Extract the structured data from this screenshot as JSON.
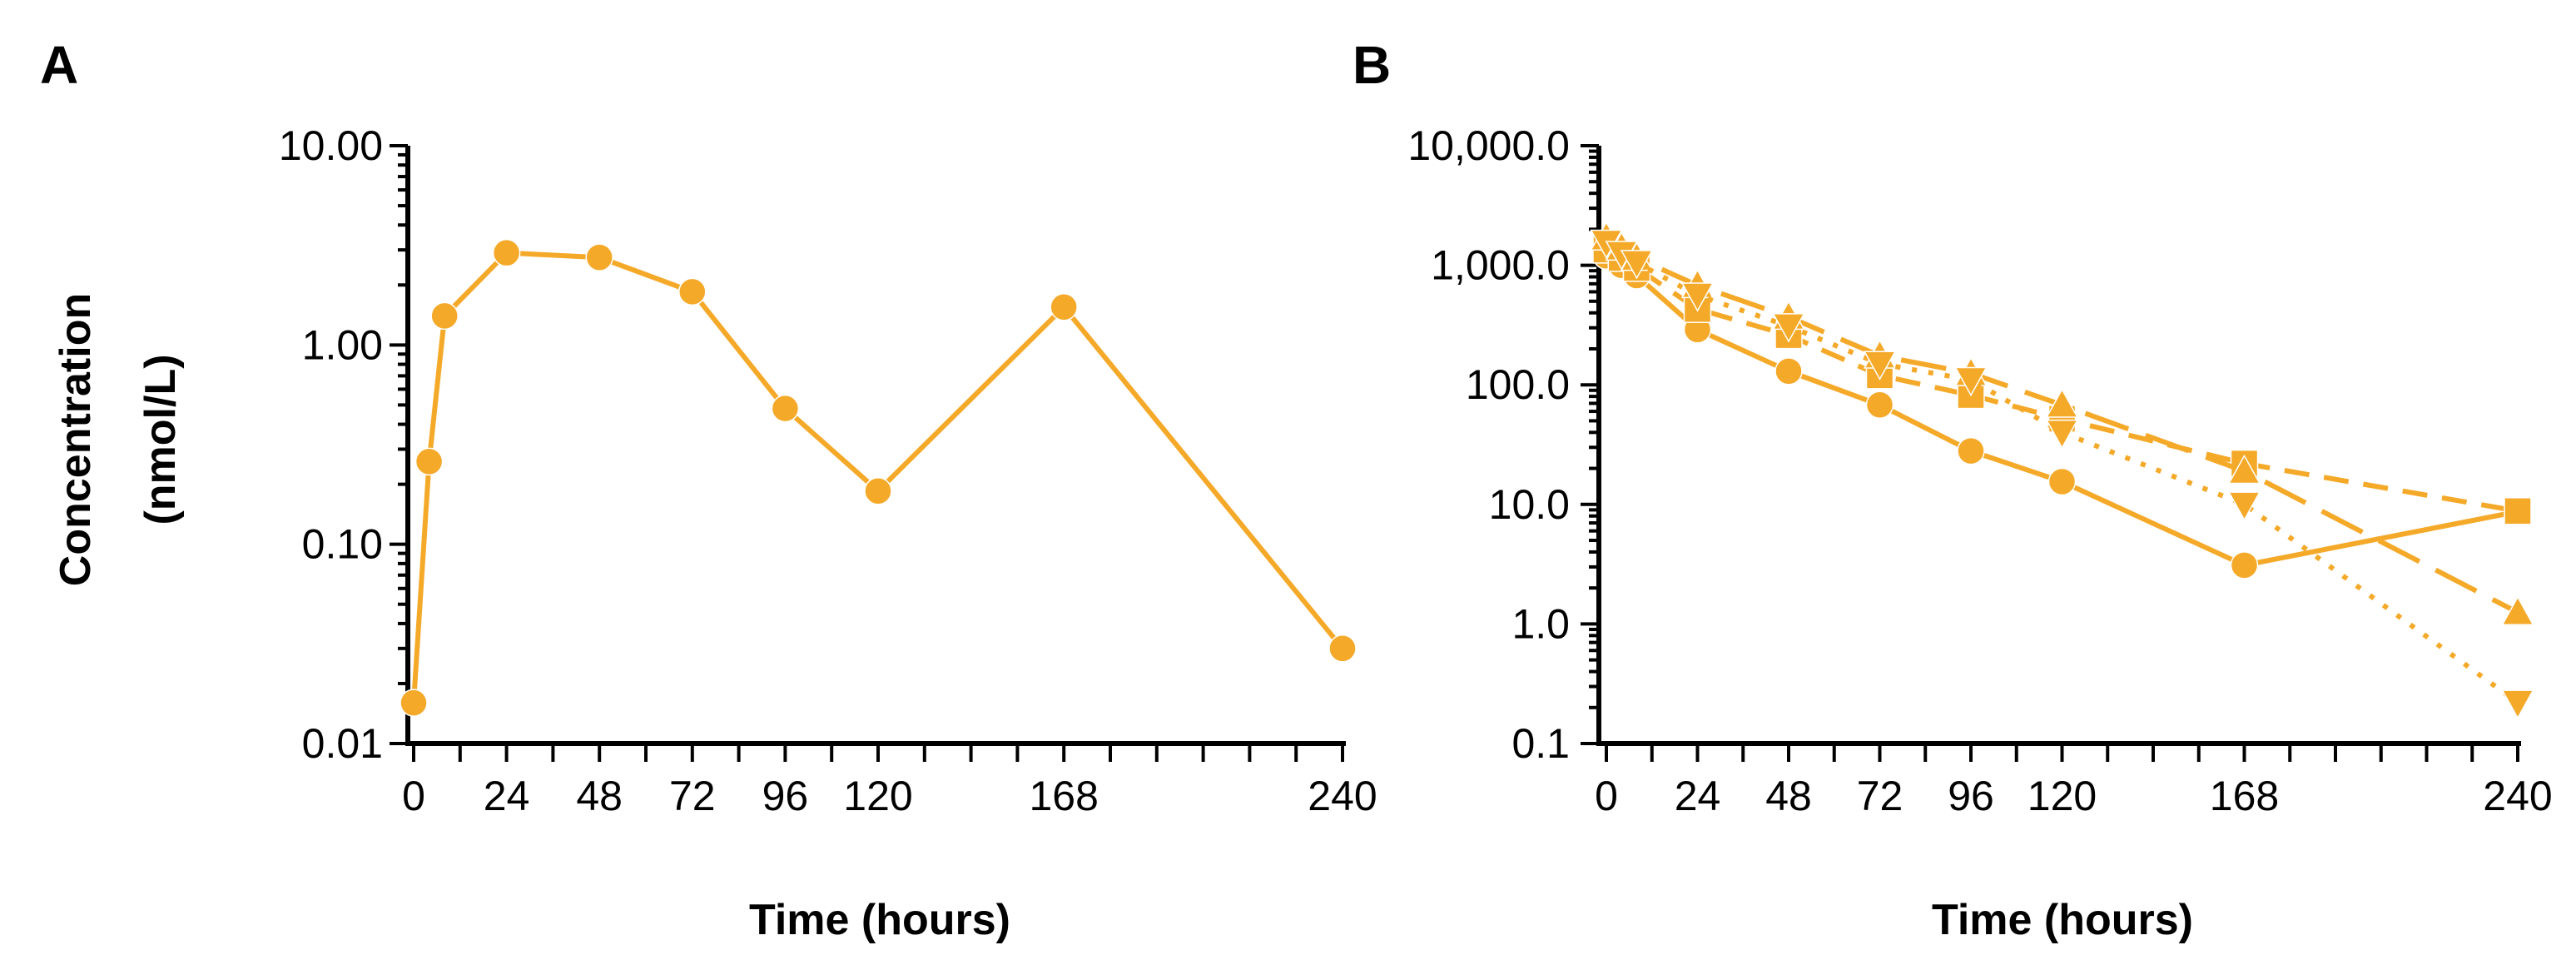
{
  "colors": {
    "series": "#F5A929",
    "axis": "#000000",
    "background": "#FFFFFF"
  },
  "chart_data": [
    {
      "panel_label": "A",
      "type": "line",
      "y_scale": "log",
      "ylim": [
        0.01,
        10
      ],
      "xlim": [
        0,
        240
      ],
      "ylabel": "Concentration (nmol/L)",
      "ylabel_lines": [
        "Concentration",
        "(nmol/L)"
      ],
      "xlabel": "Time (hours)",
      "x_ticks": [
        0,
        24,
        48,
        72,
        96,
        120,
        168,
        240
      ],
      "x_tick_labels": [
        "0",
        "24",
        "48",
        "72",
        "96",
        "120",
        "168",
        "240"
      ],
      "x_minor_ticks": [
        12,
        36,
        60,
        84,
        108,
        132,
        144,
        156,
        180,
        192,
        204,
        216,
        228
      ],
      "y_ticks": [
        0.01,
        0.1,
        1,
        10
      ],
      "y_tick_labels": [
        "0.01",
        "0.10",
        "1.00",
        "10.00"
      ],
      "grid": false,
      "legend": "none",
      "series": [
        {
          "marker": "circle",
          "line_style": "solid",
          "x": [
            0,
            4,
            8,
            24,
            48,
            72,
            96,
            120,
            168,
            240
          ],
          "y": [
            0.016,
            0.26,
            1.4,
            2.9,
            2.75,
            1.85,
            0.48,
            0.185,
            1.55,
            0.03
          ]
        }
      ]
    },
    {
      "panel_label": "B",
      "type": "line",
      "y_scale": "log",
      "ylim": [
        0.1,
        10000
      ],
      "xlim": [
        0,
        240
      ],
      "xlabel": "Time (hours)",
      "x_ticks": [
        0,
        24,
        48,
        72,
        96,
        120,
        168,
        240
      ],
      "x_tick_labels": [
        "0",
        "24",
        "48",
        "72",
        "96",
        "120",
        "168",
        "240"
      ],
      "x_minor_ticks": [
        12,
        36,
        60,
        84,
        108,
        132,
        144,
        156,
        180,
        192,
        204,
        216,
        228
      ],
      "y_ticks": [
        0.1,
        1,
        10,
        100,
        1000,
        10000
      ],
      "y_tick_labels": [
        "0.1",
        "1.0",
        "10.0",
        "100.0",
        "1,000.0",
        "10,000.0"
      ],
      "grid": false,
      "legend": "none",
      "series": [
        {
          "marker": "circle",
          "line_style": "solid",
          "x": [
            0,
            4,
            8,
            24,
            48,
            72,
            96,
            120,
            168,
            240
          ],
          "y": [
            1200,
            1000,
            820,
            290,
            130,
            68,
            28,
            15.5,
            3.1,
            8.7
          ]
        },
        {
          "marker": "square",
          "line_style": "dashed",
          "x": [
            0,
            4,
            8,
            24,
            48,
            72,
            96,
            120,
            168,
            240
          ],
          "y": [
            1350,
            1150,
            950,
            430,
            260,
            120,
            82,
            52,
            22,
            8.8
          ]
        },
        {
          "marker": "triangle-up",
          "line_style": "longdash",
          "x": [
            0,
            4,
            8,
            24,
            48,
            72,
            96,
            120,
            168,
            240
          ],
          "y": [
            1700,
            1400,
            1150,
            680,
            370,
            175,
            125,
            68,
            19,
            1.25
          ]
        },
        {
          "marker": "triangle-down",
          "line_style": "dotted",
          "x": [
            0,
            4,
            8,
            24,
            48,
            72,
            96,
            120,
            168,
            240
          ],
          "y": [
            1550,
            1250,
            1050,
            560,
            310,
            150,
            110,
            40,
            10,
            0.22
          ]
        }
      ]
    }
  ]
}
